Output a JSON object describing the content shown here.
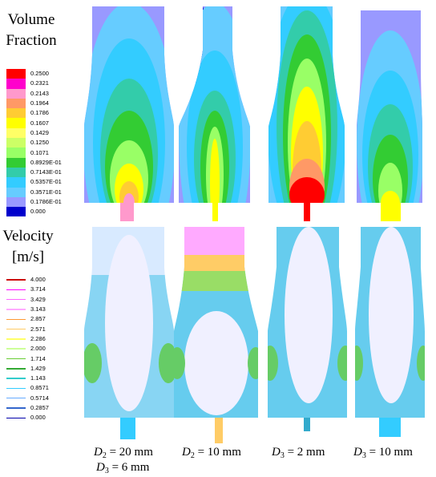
{
  "legends": {
    "volume_fraction": {
      "title_line1": "Volume",
      "title_line2": "Fraction",
      "values": [
        "0.2500",
        "0.2321",
        "0.2143",
        "0.1964",
        "0.1786",
        "0.1607",
        "0.1429",
        "0.1250",
        "0.1071",
        "0.8929E-01",
        "0.7143E-01",
        "0.5357E-01",
        "0.3571E-01",
        "0.1786E-01",
        "0.000"
      ],
      "colors": [
        "#ff0000",
        "#ff00cc",
        "#ff99cc",
        "#ff9966",
        "#ffcc33",
        "#ffff00",
        "#ffff66",
        "#ccff66",
        "#99ff66",
        "#33cc33",
        "#33ccaa",
        "#33ccff",
        "#66ccff",
        "#9999ff",
        "#0000cc"
      ]
    },
    "velocity": {
      "title_line1": "Velocity",
      "title_line2": "[m/s]",
      "values": [
        "4.000",
        "3.714",
        "3.429",
        "3.143",
        "2.857",
        "2.571",
        "2.286",
        "2.000",
        "1.714",
        "1.429",
        "1.143",
        "0.8571",
        "0.5714",
        "0.2857",
        "0.000"
      ],
      "colors": [
        "#cc0000",
        "#ff00ff",
        "#ff66ff",
        "#ffaaff",
        "#ff9933",
        "#ffcc66",
        "#ffff66",
        "#ccff99",
        "#66cc33",
        "#33aa33",
        "#33cccc",
        "#33ccff",
        "#66aaff",
        "#3366cc",
        "#0000aa"
      ]
    }
  },
  "captions": [
    {
      "var": "D",
      "sub": "2",
      "rest": " = 20 mm"
    },
    {
      "var": "D",
      "sub": "2",
      "rest": " = 10 mm"
    },
    {
      "var": "D",
      "sub": "3",
      "rest": " = 2 mm"
    },
    {
      "var": "D",
      "sub": "3",
      "rest": " = 10 mm"
    }
  ],
  "caption_second_line": {
    "var": "D",
    "sub": "3",
    "rest": " = 6 mm"
  }
}
